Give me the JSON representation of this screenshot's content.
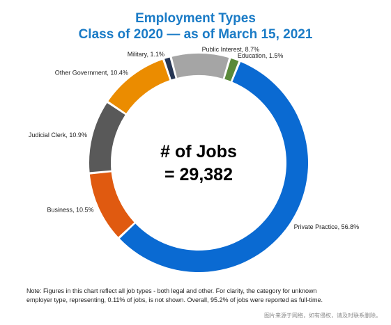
{
  "title": {
    "line1": "Employment Types",
    "line2": "Class of 2020 — as of March 15, 2021"
  },
  "center": {
    "line1": "# of Jobs",
    "line2": "= 29,382"
  },
  "note": {
    "line1": "Note: Figures in this chart reflect all job types - both legal and other. For clarity, the category for unknown",
    "line2": "employer type, representing, 0.11% of jobs, is not shown. Overall, 95.2% of jobs were reported as full-time."
  },
  "watermark": "图片来源于网络，如有侵权，请及时联系删除。",
  "chart_data": {
    "type": "pie",
    "donut": true,
    "unit": "%",
    "slices": [
      {
        "label": "Private Practice, 56.8%",
        "value": 56.8,
        "color": "#0a6ad2"
      },
      {
        "label": "Business, 10.5%",
        "value": 10.5,
        "color": "#e05a10"
      },
      {
        "label": "Judicial Clerk, 10.9%",
        "value": 10.9,
        "color": "#595959"
      },
      {
        "label": "Other Government, 10.4%",
        "value": 10.4,
        "color": "#eb8c00"
      },
      {
        "label": "Military, 1.1%",
        "value": 1.1,
        "color": "#263654"
      },
      {
        "label": "Public Interest, 8.7%",
        "value": 8.7,
        "color": "#a5a5a5"
      },
      {
        "label": "Education, 1.5%",
        "value": 1.5,
        "color": "#5a8a3a"
      }
    ],
    "start_angle_deg": 22,
    "direction": "clockwise",
    "legend": "none"
  }
}
